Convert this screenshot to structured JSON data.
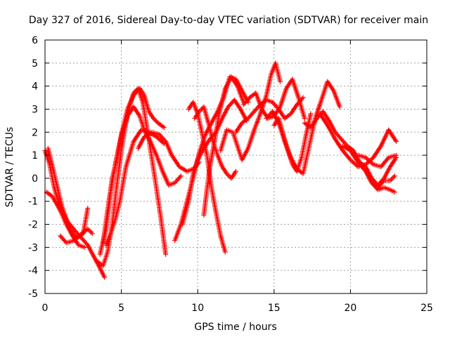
{
  "chart_data": {
    "type": "scatter",
    "title": "Day 327 of 2016, Sidereal Day-to-day VTEC variation (SDTVAR) for receiver main",
    "xlabel": "GPS time / hours",
    "ylabel": "SDTVAR / TECUs",
    "xlim": [
      0,
      25
    ],
    "ylim": [
      -5,
      6
    ],
    "xticks": [
      "0",
      "5",
      "10",
      "15",
      "20",
      "25"
    ],
    "yticks": [
      "-5",
      "-4",
      "-3",
      "-2",
      "-1",
      "0",
      "1",
      "2",
      "3",
      "4",
      "5",
      "6"
    ],
    "grid": true,
    "marker": "+",
    "series_color": "#ff0000",
    "series": [
      {
        "name": "s1",
        "x": [
          0.0,
          0.3,
          0.6,
          1.0,
          1.5,
          2.0,
          2.4,
          2.8,
          3.2,
          3.6,
          3.9
        ],
        "y": [
          1.2,
          0.6,
          -0.4,
          -1.3,
          -1.9,
          -2.3,
          -2.6,
          -2.9,
          -3.4,
          -3.9,
          -4.3
        ]
      },
      {
        "name": "s2",
        "x": [
          0.1,
          0.5,
          1.0,
          1.4,
          1.8,
          2.2,
          2.6
        ],
        "y": [
          -0.6,
          -0.8,
          -1.4,
          -2.0,
          -2.5,
          -2.9,
          -3.0
        ]
      },
      {
        "name": "s3",
        "x": [
          0.2,
          0.6,
          1.1,
          1.6,
          2.1,
          2.5,
          2.8
        ],
        "y": [
          1.3,
          0.2,
          -1.2,
          -2.2,
          -2.6,
          -2.4,
          -1.3
        ]
      },
      {
        "name": "s4",
        "x": [
          1.0,
          1.4,
          1.9,
          2.4,
          2.8,
          3.1
        ],
        "y": [
          -2.5,
          -2.8,
          -2.7,
          -2.4,
          -2.2,
          -2.4
        ]
      },
      {
        "name": "s5",
        "x": [
          3.4,
          3.8,
          4.1,
          4.4,
          4.7,
          5.0,
          5.4,
          5.8,
          6.1,
          6.4,
          6.8,
          7.2,
          7.6,
          7.9
        ],
        "y": [
          -3.6,
          -3.8,
          -3.2,
          -2.0,
          -0.3,
          1.2,
          2.8,
          3.7,
          3.9,
          3.3,
          1.7,
          0.0,
          -1.8,
          -3.3
        ]
      },
      {
        "name": "s6",
        "x": [
          3.6,
          4.0,
          4.3,
          4.6,
          5.0,
          5.4,
          5.8,
          6.2,
          6.5,
          6.8,
          7.1,
          7.4,
          7.8
        ],
        "y": [
          -3.3,
          -2.2,
          -0.6,
          0.6,
          1.9,
          3.0,
          3.6,
          3.9,
          3.6,
          2.9,
          2.6,
          2.4,
          2.2
        ]
      },
      {
        "name": "s7",
        "x": [
          3.8,
          4.1,
          4.4,
          4.7,
          5.0,
          5.4,
          5.8,
          6.2,
          6.5,
          6.9,
          7.3,
          7.7,
          8.1,
          8.5,
          8.9
        ],
        "y": [
          -2.8,
          -1.4,
          0.0,
          0.8,
          1.8,
          2.7,
          3.1,
          2.7,
          2.1,
          1.6,
          1.0,
          0.3,
          -0.3,
          -0.2,
          0.1
        ]
      },
      {
        "name": "s8",
        "x": [
          4.0,
          4.3,
          4.6,
          4.9,
          5.3,
          5.8,
          6.3,
          6.8,
          7.3,
          7.8
        ],
        "y": [
          -2.9,
          -2.4,
          -1.8,
          -1.0,
          0.5,
          1.6,
          2.1,
          2.0,
          1.8,
          1.5
        ]
      },
      {
        "name": "s9",
        "x": [
          6.1,
          6.5,
          7.0,
          7.5,
          7.9,
          8.3,
          8.8,
          9.3,
          9.7,
          10.1
        ],
        "y": [
          1.3,
          1.8,
          2.0,
          1.9,
          1.6,
          1.0,
          0.5,
          0.3,
          0.4,
          0.7
        ]
      },
      {
        "name": "s10",
        "x": [
          8.5,
          8.9,
          9.3,
          9.7,
          10.1,
          10.5,
          10.9,
          11.3,
          11.7,
          12.1,
          12.5,
          12.9,
          13.3
        ],
        "y": [
          -2.7,
          -2.0,
          -1.0,
          0.0,
          1.1,
          1.9,
          2.4,
          2.9,
          3.5,
          4.4,
          4.3,
          3.8,
          3.3
        ]
      },
      {
        "name": "s11",
        "x": [
          9.0,
          9.4,
          9.7,
          10.0,
          10.4,
          10.8,
          11.2,
          11.6,
          12.0,
          12.4,
          12.8,
          13.2
        ],
        "y": [
          -2.0,
          -1.0,
          0.2,
          0.8,
          1.3,
          1.7,
          2.0,
          2.6,
          3.1,
          3.4,
          3.0,
          2.5
        ]
      },
      {
        "name": "s12",
        "x": [
          9.4,
          9.7,
          10.0,
          10.3,
          10.6,
          10.9,
          11.2,
          11.5,
          11.8
        ],
        "y": [
          3.0,
          3.3,
          2.8,
          1.9,
          1.0,
          -0.4,
          -1.5,
          -2.5,
          -3.2
        ]
      },
      {
        "name": "s13",
        "x": [
          9.8,
          10.1,
          10.4,
          10.7,
          11.0,
          11.3,
          11.6,
          11.9,
          12.2,
          12.5
        ],
        "y": [
          2.6,
          2.9,
          3.1,
          2.4,
          1.6,
          1.0,
          0.5,
          0.2,
          0.0,
          0.3
        ]
      },
      {
        "name": "s14",
        "x": [
          10.4,
          10.6,
          10.8,
          11.1,
          11.4,
          11.8,
          12.2,
          12.6,
          13.0
        ],
        "y": [
          -1.6,
          -0.5,
          0.5,
          1.6,
          2.8,
          3.9,
          4.4,
          4.0,
          3.3
        ]
      },
      {
        "name": "s15",
        "x": [
          11.5,
          11.9,
          12.3,
          12.6,
          12.9,
          13.3,
          13.7,
          14.1,
          14.5,
          14.8,
          15.1,
          15.4
        ],
        "y": [
          1.2,
          2.1,
          2.0,
          1.4,
          0.8,
          1.3,
          2.1,
          2.8,
          3.6,
          4.5,
          5.0,
          4.2
        ]
      },
      {
        "name": "s16",
        "x": [
          12.5,
          12.9,
          13.3,
          13.7,
          14.1,
          14.5,
          14.9,
          15.3,
          15.7,
          16.1,
          16.5,
          16.9
        ],
        "y": [
          2.0,
          2.4,
          2.6,
          2.9,
          3.2,
          3.4,
          3.3,
          3.0,
          2.6,
          2.8,
          3.2,
          3.5
        ]
      },
      {
        "name": "s17",
        "x": [
          13.0,
          13.4,
          13.8,
          14.2,
          14.6,
          15.0,
          15.4,
          15.8,
          16.2,
          16.6,
          17.0
        ],
        "y": [
          3.2,
          3.5,
          3.7,
          3.0,
          2.6,
          2.7,
          3.1,
          3.9,
          4.3,
          3.5,
          2.6
        ]
      },
      {
        "name": "s18",
        "x": [
          14.5,
          14.9,
          15.3,
          15.7,
          16.1,
          16.5,
          16.9,
          17.3,
          17.7,
          18.1,
          18.5,
          18.9,
          19.3
        ],
        "y": [
          2.6,
          2.9,
          2.4,
          1.6,
          0.9,
          0.4,
          0.2,
          1.4,
          2.6,
          3.4,
          4.2,
          3.8,
          3.1
        ]
      },
      {
        "name": "s19",
        "x": [
          15.0,
          15.3,
          15.6,
          15.9,
          16.2,
          16.5,
          16.8,
          17.1,
          17.4
        ],
        "y": [
          2.3,
          2.6,
          1.9,
          1.2,
          0.6,
          0.3,
          0.9,
          1.9,
          2.8
        ]
      },
      {
        "name": "s20",
        "x": [
          17.0,
          17.4,
          17.8,
          18.2,
          18.6,
          19.0,
          19.4,
          19.8,
          20.2,
          20.6,
          21.0,
          21.4,
          21.8,
          22.2,
          22.6,
          23.0
        ],
        "y": [
          2.4,
          2.2,
          2.6,
          2.9,
          2.5,
          2.0,
          1.7,
          1.4,
          1.2,
          0.7,
          0.5,
          0.0,
          -0.3,
          0.0,
          0.5,
          0.9
        ]
      },
      {
        "name": "s21",
        "x": [
          18.0,
          18.5,
          19.0,
          19.5,
          20.0,
          20.5,
          21.0,
          21.5,
          22.0,
          22.5,
          23.0
        ],
        "y": [
          2.8,
          2.3,
          1.7,
          1.2,
          0.8,
          0.5,
          0.6,
          0.9,
          1.4,
          2.1,
          1.6
        ]
      },
      {
        "name": "s22",
        "x": [
          19.5,
          20.0,
          20.5,
          21.0,
          21.4,
          21.8,
          22.2,
          22.6,
          22.9
        ],
        "y": [
          1.4,
          1.2,
          0.7,
          0.3,
          -0.2,
          -0.5,
          -0.4,
          -0.5,
          -0.6
        ]
      },
      {
        "name": "s23",
        "x": [
          20.5,
          21.0,
          21.5,
          22.0,
          22.5,
          23.0
        ],
        "y": [
          1.0,
          0.9,
          0.6,
          0.5,
          0.9,
          1.0
        ]
      },
      {
        "name": "s24",
        "x": [
          21.0,
          21.4,
          21.8,
          22.2,
          22.6,
          22.9
        ],
        "y": [
          0.4,
          -0.2,
          -0.4,
          -0.1,
          -0.1,
          0.1
        ]
      }
    ]
  }
}
